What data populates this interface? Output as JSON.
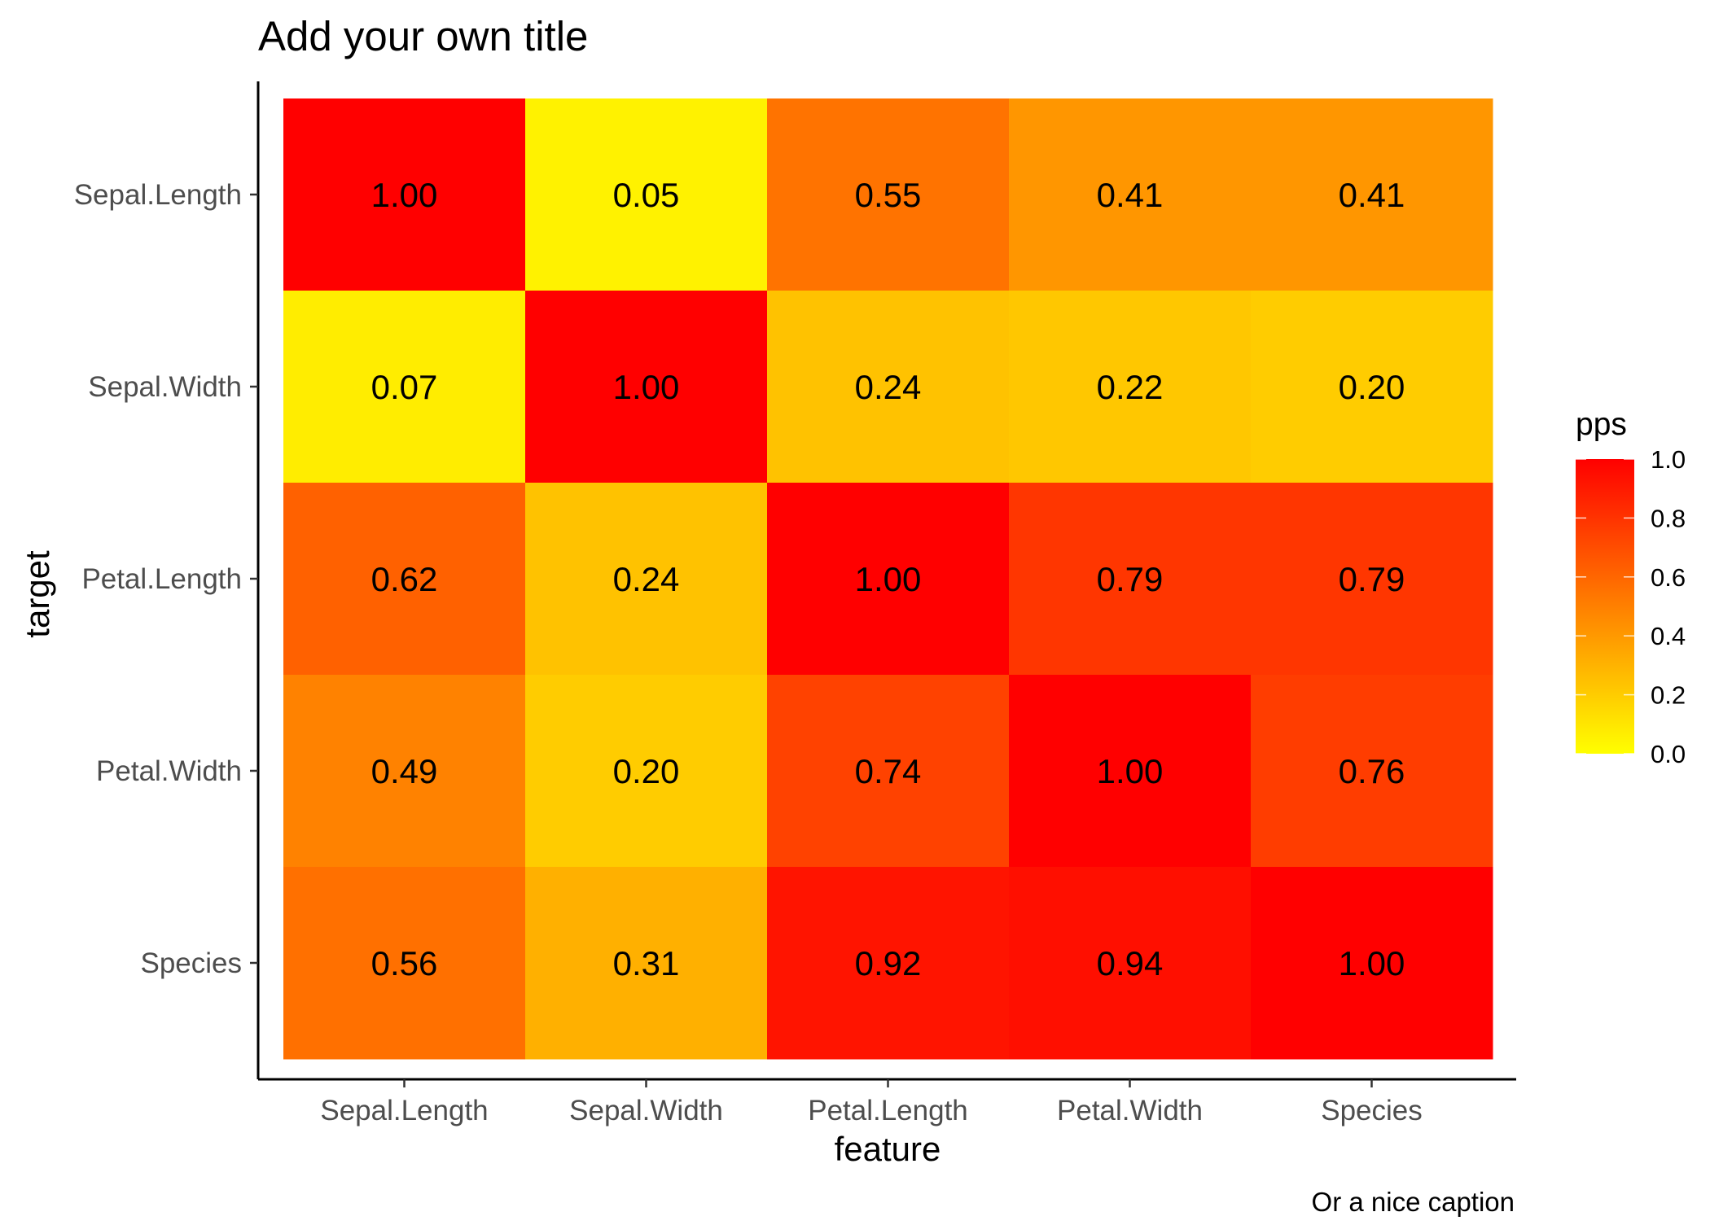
{
  "chart_data": {
    "type": "heatmap",
    "title": "Add your own title",
    "xlabel": "feature",
    "ylabel": "target",
    "caption": "Or a nice caption",
    "x_categories": [
      "Sepal.Length",
      "Sepal.Width",
      "Petal.Length",
      "Petal.Width",
      "Species"
    ],
    "y_categories": [
      "Sepal.Length",
      "Sepal.Width",
      "Petal.Length",
      "Petal.Width",
      "Species"
    ],
    "values": [
      [
        1.0,
        0.05,
        0.55,
        0.41,
        0.41
      ],
      [
        0.07,
        1.0,
        0.24,
        0.22,
        0.2
      ],
      [
        0.62,
        0.24,
        1.0,
        0.79,
        0.79
      ],
      [
        0.49,
        0.2,
        0.74,
        1.0,
        0.76
      ],
      [
        0.56,
        0.31,
        0.92,
        0.94,
        1.0
      ]
    ],
    "value_labels": [
      [
        "1.00",
        "0.05",
        "0.55",
        "0.41",
        "0.41"
      ],
      [
        "0.07",
        "1.00",
        "0.24",
        "0.22",
        "0.20"
      ],
      [
        "0.62",
        "0.24",
        "1.00",
        "0.79",
        "0.79"
      ],
      [
        "0.49",
        "0.20",
        "0.74",
        "1.00",
        "0.76"
      ],
      [
        "0.56",
        "0.31",
        "0.92",
        "0.94",
        "1.00"
      ]
    ],
    "legend": {
      "title": "pps",
      "ticks": [
        "0.0",
        "0.2",
        "0.4",
        "0.6",
        "0.8",
        "1.0"
      ],
      "range": [
        0,
        1
      ],
      "position": "right"
    },
    "colors": {
      "low": "#ffff00",
      "high": "#ff0000"
    },
    "grid": false
  }
}
